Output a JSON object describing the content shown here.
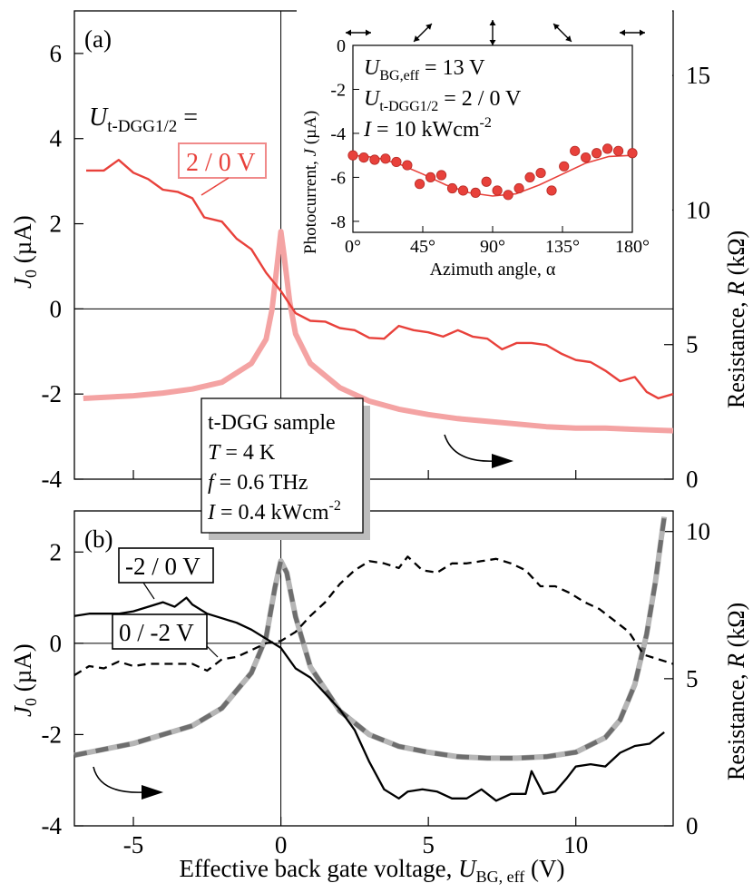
{
  "chart_data": [
    {
      "panel": "(a)",
      "type": "line",
      "xlabel": "",
      "ylabel": "J0 (µA)",
      "ylabel_main": "J",
      "ylabel_sub": "0",
      "ylabel_rest": " (µA)",
      "y2label": "Resistance,  R (kΩ)",
      "y2label_main": "Resistance,  ",
      "y2label_sym": "R",
      "y2label_rest": " (kΩ)",
      "xlim": [
        -7,
        13.3
      ],
      "ylim": [
        -4,
        7
      ],
      "y2lim": [
        0,
        17.4
      ],
      "x_ticks": [
        -5,
        0,
        5,
        10
      ],
      "y_ticks": [
        "6",
        "4",
        "2",
        "0",
        "-2",
        "-4"
      ],
      "y2_ticks": [
        "15",
        "10",
        "5",
        "0"
      ],
      "annotation_voltage_label": "U",
      "annotation_voltage_sub": "t-DGG1/2",
      "annotation_voltage_eq": " =",
      "series_label": "2 / 0 V",
      "series": [
        {
          "name": "2 / 0 V",
          "axis": "left",
          "color": "#e8413b",
          "x": [
            -6.6,
            -6.0,
            -5.5,
            -5.0,
            -4.5,
            -4.0,
            -3.5,
            -3.0,
            -2.6,
            -2.0,
            -1.5,
            -1.0,
            -0.5,
            0.0,
            0.5,
            1.0,
            1.5,
            2.0,
            2.5,
            3.0,
            3.5,
            4.0,
            4.5,
            5.0,
            5.5,
            6.0,
            6.5,
            7.0,
            7.5,
            8.0,
            8.5,
            9.0,
            9.5,
            10.0,
            10.5,
            11.0,
            11.5,
            12.0,
            12.4,
            12.8,
            13.3
          ],
          "y": [
            3.25,
            3.25,
            3.5,
            3.2,
            3.05,
            2.8,
            2.75,
            2.6,
            2.15,
            2.05,
            1.65,
            1.4,
            0.85,
            0.42,
            -0.1,
            -0.28,
            -0.3,
            -0.45,
            -0.5,
            -0.68,
            -0.7,
            -0.4,
            -0.5,
            -0.55,
            -0.65,
            -0.5,
            -0.65,
            -0.7,
            -0.95,
            -0.8,
            -0.8,
            -0.85,
            -1.05,
            -1.2,
            -1.25,
            -1.45,
            -1.7,
            -1.6,
            -1.95,
            -2.1,
            -2.0
          ]
        },
        {
          "name": "R",
          "axis": "right",
          "color": "#f4a3a3",
          "x": [
            -6.7,
            -5.0,
            -4.0,
            -3.0,
            -2.0,
            -1.0,
            -0.5,
            -0.3,
            -0.1,
            0.0,
            0.1,
            0.3,
            0.5,
            1.0,
            2.0,
            3.0,
            4.0,
            5.0,
            6.0,
            7.0,
            8.0,
            9.0,
            10.0,
            11.0,
            12.0,
            13.3
          ],
          "y": [
            3.0,
            3.1,
            3.2,
            3.35,
            3.6,
            4.3,
            5.2,
            6.3,
            8.2,
            9.2,
            8.4,
            6.6,
            5.4,
            4.3,
            3.4,
            2.9,
            2.6,
            2.4,
            2.25,
            2.15,
            2.05,
            1.95,
            1.9,
            1.9,
            1.85,
            1.8
          ]
        }
      ],
      "inset": {
        "type": "scatter",
        "xlabel": "Azimuth angle,  α",
        "ylabel": "Photocurrent,  J (µA)",
        "ylabel_main": "Photocurrent,  ",
        "ylabel_sym": "J",
        "ylabel_rest": " (µA)",
        "xlim": [
          0,
          180
        ],
        "ylim": [
          -8.5,
          0
        ],
        "x_tick_labels": [
          "0°",
          "45°",
          "90°",
          "135°",
          "180°"
        ],
        "x_ticks": [
          0,
          45,
          90,
          135,
          180
        ],
        "y_ticks": [
          "0",
          "-2",
          "-4",
          "-6",
          "-8"
        ],
        "y_tick_values": [
          0,
          -2,
          -4,
          -6,
          -8
        ],
        "polarization_arrows": [
          "↔",
          "⤢",
          "↕",
          "⤡",
          "↔"
        ],
        "params": [
          {
            "main": "U",
            "sub": "BG,eff",
            "rest": " = 13 V"
          },
          {
            "main": "U",
            "sub": "t-DGG1/2",
            "rest": " = 2 / 0 V"
          },
          {
            "main": "I",
            "sub": "",
            "rest": " = 10 kWcm",
            "sup": "-2"
          }
        ],
        "points_x": [
          0,
          7,
          14,
          21,
          28,
          35,
          43,
          50,
          57,
          64,
          71,
          79,
          86,
          93,
          100,
          107,
          114,
          121,
          128,
          136,
          143,
          150,
          157,
          164,
          171,
          180
        ],
        "points_y": [
          -5.0,
          -5.1,
          -5.2,
          -5.15,
          -5.3,
          -5.45,
          -6.3,
          -6.0,
          -5.9,
          -6.5,
          -6.6,
          -6.7,
          -6.2,
          -6.6,
          -6.8,
          -6.5,
          -6.0,
          -5.8,
          -6.6,
          -5.5,
          -4.8,
          -5.1,
          -4.9,
          -4.7,
          -4.8,
          -4.9
        ],
        "fit_x": [
          0,
          15,
          30,
          45,
          60,
          75,
          90,
          105,
          120,
          135,
          150,
          165,
          180
        ],
        "fit_y": [
          -5.0,
          -5.1,
          -5.4,
          -5.85,
          -6.35,
          -6.7,
          -6.85,
          -6.75,
          -6.35,
          -5.85,
          -5.35,
          -5.05,
          -5.0
        ]
      },
      "arrow_direction": "right"
    },
    {
      "panel": "(b)",
      "type": "line",
      "xlabel": "Effective back gate voltage,  U_BG, eff (V)",
      "xlabel_main": "Effective back gate voltage,   ",
      "xlabel_sym": "U",
      "xlabel_sub": "BG, eff",
      "xlabel_rest": " (V)",
      "ylabel": "J0 (µA)",
      "ylabel_main": "J",
      "ylabel_sub": "0",
      "ylabel_rest": " (µA)",
      "y2label": "Resistance,  R (kΩ)",
      "y2label_main": "Resistance,  ",
      "y2label_sym": "R",
      "y2label_rest": " (kΩ)",
      "xlim": [
        -7,
        13.3
      ],
      "ylim": [
        -4,
        2.9
      ],
      "y2lim": [
        0,
        10.7
      ],
      "x_ticks": [
        "-5",
        "0",
        "5",
        "10"
      ],
      "x_tick_values": [
        -5,
        0,
        5,
        10
      ],
      "y_ticks": [
        "2",
        "0",
        "-2",
        "-4"
      ],
      "y_tick_values": [
        2,
        0,
        -2,
        -4
      ],
      "y2_ticks": [
        "10",
        "5",
        "0"
      ],
      "y2_tick_values": [
        10,
        5,
        0
      ],
      "series_label_solid": "-2 / 0 V",
      "series_label_dashed": "0 / -2 V",
      "series": [
        {
          "name": "-2 / 0 V",
          "axis": "left",
          "style": "solid",
          "x": [
            -7.0,
            -6.5,
            -6.0,
            -5.5,
            -5.0,
            -4.5,
            -4.0,
            -3.6,
            -3.2,
            -3.0,
            -2.5,
            -2.0,
            -1.5,
            -1.0,
            -0.5,
            0.0,
            0.5,
            1.0,
            1.5,
            2.0,
            2.5,
            3.0,
            3.5,
            4.0,
            4.3,
            4.8,
            5.3,
            5.8,
            6.3,
            6.8,
            7.3,
            7.8,
            8.3,
            8.5,
            8.9,
            9.3,
            9.7,
            10.0,
            10.5,
            11.0,
            11.5,
            12.0,
            12.5,
            13.0
          ],
          "y": [
            0.6,
            0.65,
            0.65,
            0.65,
            0.7,
            0.8,
            0.9,
            0.8,
            1.0,
            0.85,
            0.65,
            0.55,
            0.45,
            0.3,
            0.1,
            -0.1,
            -0.55,
            -0.75,
            -1.1,
            -1.45,
            -1.9,
            -2.6,
            -3.2,
            -3.4,
            -3.25,
            -3.2,
            -3.25,
            -3.4,
            -3.4,
            -3.2,
            -3.45,
            -3.3,
            -3.3,
            -2.8,
            -3.3,
            -3.25,
            -2.95,
            -2.7,
            -2.65,
            -2.7,
            -2.4,
            -2.25,
            -2.2,
            -1.95
          ]
        },
        {
          "name": "0 / -2 V",
          "axis": "left",
          "style": "dashed",
          "x": [
            -7.0,
            -6.5,
            -6.0,
            -5.5,
            -5.0,
            -4.5,
            -4.0,
            -3.5,
            -3.0,
            -2.5,
            -2.0,
            -1.5,
            -1.0,
            -0.5,
            0.0,
            0.5,
            1.0,
            1.5,
            2.0,
            2.5,
            3.0,
            3.5,
            4.0,
            4.3,
            4.8,
            5.3,
            5.8,
            6.3,
            6.8,
            7.3,
            7.8,
            8.3,
            8.8,
            9.3,
            9.8,
            10.3,
            10.8,
            11.3,
            11.8,
            12.3,
            12.8,
            13.3
          ],
          "y": [
            -0.7,
            -0.5,
            -0.55,
            -0.4,
            -0.5,
            -0.45,
            -0.45,
            -0.45,
            -0.45,
            -0.6,
            -0.35,
            -0.3,
            -0.15,
            0.0,
            0.05,
            0.25,
            0.6,
            0.9,
            1.3,
            1.6,
            1.8,
            1.75,
            1.65,
            1.9,
            1.6,
            1.55,
            1.75,
            1.75,
            1.8,
            1.85,
            1.75,
            1.6,
            1.25,
            1.25,
            1.1,
            0.9,
            0.75,
            0.5,
            0.25,
            -0.25,
            -0.35,
            -0.45
          ]
        },
        {
          "name": "R",
          "axis": "right",
          "style": "thick-light",
          "x": [
            -7.0,
            -5.0,
            -3.0,
            -2.0,
            -1.0,
            -0.5,
            -0.2,
            0.0,
            0.2,
            0.5,
            1.0,
            2.0,
            3.0,
            4.0,
            5.0,
            6.0,
            7.0,
            8.0,
            9.0,
            10.0,
            11.0,
            11.5,
            12.0,
            12.4,
            12.7,
            12.9,
            13.0
          ],
          "y": [
            2.4,
            2.8,
            3.4,
            4.0,
            5.2,
            6.4,
            8.1,
            9.0,
            8.6,
            7.1,
            5.4,
            3.9,
            3.1,
            2.7,
            2.5,
            2.35,
            2.3,
            2.3,
            2.35,
            2.5,
            3.0,
            3.6,
            4.8,
            6.5,
            8.3,
            9.8,
            10.5
          ]
        }
      ],
      "arrow_direction": "right"
    }
  ],
  "sample_box": {
    "title": "t-DGG sample",
    "lines": [
      {
        "sym": "T",
        "rest": " = 4 K",
        "sup": ""
      },
      {
        "sym": "f",
        "rest": " = 0.6 THz",
        "sup": ""
      },
      {
        "sym": "I",
        "rest": " = 0.4 kWcm",
        "sup": "-2"
      }
    ]
  }
}
